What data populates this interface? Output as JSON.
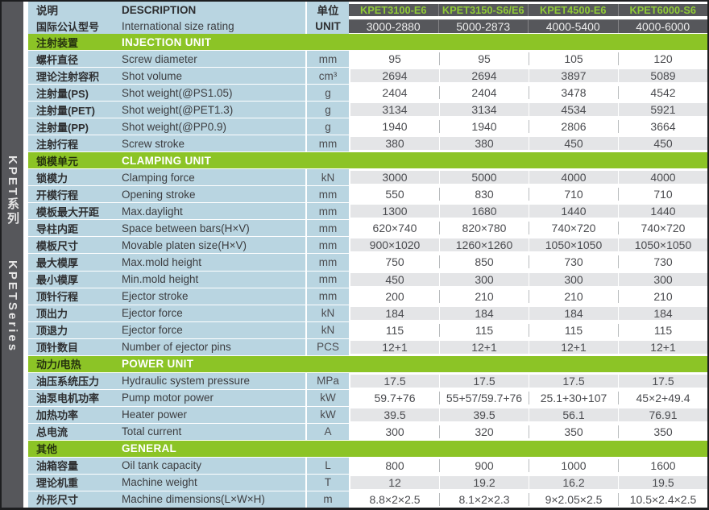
{
  "sidebar": {
    "series_cn": "KPET系列",
    "series_en": "KPETSeries"
  },
  "header": {
    "desc_label_cn": "说明",
    "desc_label_en": "DESCRIPTION",
    "unit_label_cn": "单位",
    "unit_label_en": "UNIT",
    "rating_label_cn": "国际公认型号",
    "rating_label_en": "International size rating",
    "models": [
      "KPET3100-E6",
      "KPET3150-S6/E6",
      "KPET4500-E6",
      "KPET6000-S6"
    ],
    "ratings": [
      "3000-2880",
      "5000-2873",
      "4000-5400",
      "4000-6000"
    ]
  },
  "colors": {
    "accent_green": "#8CC426",
    "header_dark": "#56575B",
    "label_blue": "#B9D5E1",
    "alt_row_gray": "#E4E5E7"
  },
  "sections": [
    {
      "cn": "注射装置",
      "en": "INJECTION UNIT",
      "rows": [
        {
          "cn": "螺杆直径",
          "en": "Screw diameter",
          "unit": "mm",
          "values": [
            "95",
            "95",
            "105",
            "120"
          ]
        },
        {
          "cn": "理论注射容积",
          "en": "Shot volume",
          "unit": "cm³",
          "values": [
            "2694",
            "2694",
            "3897",
            "5089"
          ]
        },
        {
          "cn": "注射量(PS)",
          "en": "Shot weight(@PS1.05)",
          "unit": "g",
          "values": [
            "2404",
            "2404",
            "3478",
            "4542"
          ]
        },
        {
          "cn": "注射量(PET)",
          "en": "Shot weight(@PET1.3)",
          "unit": "g",
          "values": [
            "3134",
            "3134",
            "4534",
            "5921"
          ]
        },
        {
          "cn": "注射量(PP)",
          "en": "Shot weight(@PP0.9)",
          "unit": "g",
          "values": [
            "1940",
            "1940",
            "2806",
            "3664"
          ]
        },
        {
          "cn": "注射行程",
          "en": "Screw stroke",
          "unit": "mm",
          "values": [
            "380",
            "380",
            "450",
            "450"
          ]
        }
      ]
    },
    {
      "cn": "锁模单元",
      "en": "CLAMPING UNIT",
      "rows": [
        {
          "cn": "锁模力",
          "en": "Clamping force",
          "unit": "kN",
          "values": [
            "3000",
            "5000",
            "4000",
            "4000"
          ]
        },
        {
          "cn": "开模行程",
          "en": "Opening stroke",
          "unit": "mm",
          "values": [
            "550",
            "830",
            "710",
            "710"
          ]
        },
        {
          "cn": "模板最大开距",
          "en": "Max.daylight",
          "unit": "mm",
          "values": [
            "1300",
            "1680",
            "1440",
            "1440"
          ]
        },
        {
          "cn": "导柱内距",
          "en": "Space between bars(H×V)",
          "unit": "mm",
          "values": [
            "620×740",
            "820×780",
            "740×720",
            "740×720"
          ]
        },
        {
          "cn": "模板尺寸",
          "en": "Movable platen size(H×V)",
          "unit": "mm",
          "values": [
            "900×1020",
            "1260×1260",
            "1050×1050",
            "1050×1050"
          ]
        },
        {
          "cn": "最大模厚",
          "en": "Max.mold height",
          "unit": "mm",
          "values": [
            "750",
            "850",
            "730",
            "730"
          ]
        },
        {
          "cn": "最小模厚",
          "en": "Min.mold height",
          "unit": "mm",
          "values": [
            "450",
            "300",
            "300",
            "300"
          ]
        },
        {
          "cn": "顶针行程",
          "en": "Ejector stroke",
          "unit": "mm",
          "values": [
            "200",
            "210",
            "210",
            "210"
          ]
        },
        {
          "cn": "顶出力",
          "en": "Ejector force",
          "unit": "kN",
          "values": [
            "184",
            "184",
            "184",
            "184"
          ]
        },
        {
          "cn": "顶退力",
          "en": "Ejector force",
          "unit": "kN",
          "values": [
            "115",
            "115",
            "115",
            "115"
          ]
        },
        {
          "cn": "顶针数目",
          "en": "Number of ejector pins",
          "unit": "PCS",
          "values": [
            "12+1",
            "12+1",
            "12+1",
            "12+1"
          ]
        }
      ]
    },
    {
      "cn": "动力/电热",
      "en": "POWER UNIT",
      "rows": [
        {
          "cn": "油压系统压力",
          "en": "Hydraulic system pressure",
          "unit": "MPa",
          "values": [
            "17.5",
            "17.5",
            "17.5",
            "17.5"
          ]
        },
        {
          "cn": "油泵电机功率",
          "en": "Pump motor power",
          "unit": "kW",
          "values": [
            "59.7+76",
            "55+57/59.7+76",
            "25.1+30+107",
            "45×2+49.4"
          ]
        },
        {
          "cn": "加热功率",
          "en": "Heater power",
          "unit": "kW",
          "values": [
            "39.5",
            "39.5",
            "56.1",
            "76.91"
          ]
        },
        {
          "cn": "总电流",
          "en": "Total current",
          "unit": "A",
          "values": [
            "300",
            "320",
            "350",
            "350"
          ]
        }
      ]
    },
    {
      "cn": "其他",
      "en": "GENERAL",
      "rows": [
        {
          "cn": "油箱容量",
          "en": "Oil tank capacity",
          "unit": "L",
          "values": [
            "800",
            "900",
            "1000",
            "1600"
          ]
        },
        {
          "cn": "理论机重",
          "en": "Machine weight",
          "unit": "T",
          "values": [
            "12",
            "19.2",
            "16.2",
            "19.5"
          ]
        },
        {
          "cn": "外形尺寸",
          "en": "Machine dimensions(L×W×H)",
          "unit": "m",
          "values": [
            "8.8×2×2.5",
            "8.1×2×2.3",
            "9×2.05×2.5",
            "10.5×2.4×2.5"
          ]
        }
      ]
    }
  ]
}
